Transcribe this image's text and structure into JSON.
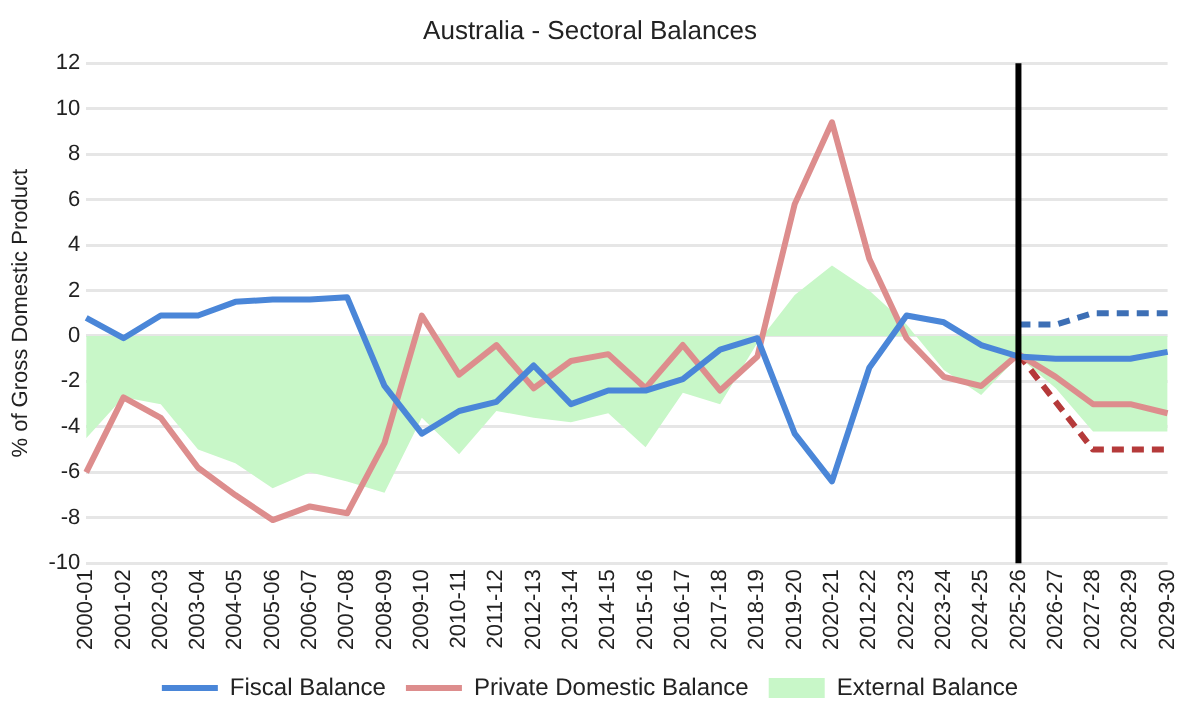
{
  "chart_data": {
    "type": "line",
    "title": "Australia - Sectoral Balances",
    "ylabel": "% of Gross Domestic Product",
    "categories": [
      "2000-01",
      "2001-02",
      "2002-03",
      "2003-04",
      "2004-05",
      "2005-06",
      "2006-07",
      "2007-08",
      "2008-09",
      "2009-10",
      "2010-11",
      "2011-12",
      "2012-13",
      "2013-14",
      "2014-15",
      "2015-16",
      "2016-17",
      "2017-18",
      "2018-19",
      "2019-20",
      "2020-21",
      "2012-22",
      "2022-23",
      "2023-24",
      "2024-25",
      "2025-26",
      "2026-27",
      "2027-28",
      "2028-29",
      "2029-30"
    ],
    "series": [
      {
        "name": "External Balance",
        "type": "area",
        "color": "#c8f7c8",
        "values": [
          -4.5,
          -2.7,
          -3.0,
          -5.0,
          -5.6,
          -6.7,
          -6.0,
          -6.4,
          -6.9,
          -3.6,
          -5.2,
          -3.3,
          -3.6,
          -3.8,
          -3.4,
          -4.9,
          -2.5,
          -3.0,
          -0.3,
          1.8,
          3.1,
          2.0,
          0.5,
          -1.5,
          -2.6,
          -0.9,
          -2.3,
          -4.2,
          -4.2,
          -4.2
        ]
      },
      {
        "name": "Fiscal Balance",
        "color": "#4a86d8",
        "values": [
          0.8,
          -0.1,
          0.9,
          0.9,
          1.5,
          1.6,
          1.6,
          1.7,
          -2.2,
          -4.3,
          -3.3,
          -2.9,
          -1.3,
          -3.0,
          -2.4,
          -2.4,
          -1.9,
          -0.6,
          -0.1,
          -4.3,
          -6.4,
          -1.4,
          0.9,
          0.6,
          -0.4,
          -0.9,
          -1.0,
          -1.0,
          -1.0,
          -0.7
        ]
      },
      {
        "name": "Private Domestic Balance",
        "color": "#dd8d8d",
        "values": [
          -6.0,
          -2.7,
          -3.6,
          -5.8,
          -7.0,
          -8.1,
          -7.5,
          -7.8,
          -4.7,
          0.9,
          -1.7,
          -0.4,
          -2.3,
          -1.1,
          -0.8,
          -2.3,
          -0.4,
          -2.4,
          -0.9,
          5.8,
          9.4,
          3.4,
          -0.1,
          -1.8,
          -2.2,
          -0.8,
          -1.8,
          -3.0,
          -3.0,
          -3.4
        ]
      },
      {
        "color": "#3d6fb5",
        "line_style": "dashed",
        "values": [
          null,
          null,
          null,
          null,
          null,
          null,
          null,
          null,
          null,
          null,
          null,
          null,
          null,
          null,
          null,
          null,
          null,
          null,
          null,
          null,
          null,
          null,
          null,
          null,
          null,
          0.5,
          0.5,
          1.0,
          1.0,
          1.0
        ]
      },
      {
        "color": "#b53a3a",
        "line_style": "dashed",
        "values": [
          null,
          null,
          null,
          null,
          null,
          null,
          null,
          null,
          null,
          null,
          null,
          null,
          null,
          null,
          null,
          null,
          null,
          null,
          null,
          null,
          null,
          null,
          null,
          null,
          null,
          -0.8,
          -2.9,
          -5.0,
          -5.0,
          -5.0
        ]
      }
    ],
    "ylim": [
      -10,
      12
    ],
    "yticks": [
      -10,
      -8,
      -6,
      -4,
      -2,
      0,
      2,
      4,
      6,
      8,
      10,
      12
    ],
    "grid": "y",
    "legend": "bottom",
    "ref_lines": [
      {
        "axis": "x",
        "value": "2025-26",
        "color": "#000000"
      }
    ]
  }
}
